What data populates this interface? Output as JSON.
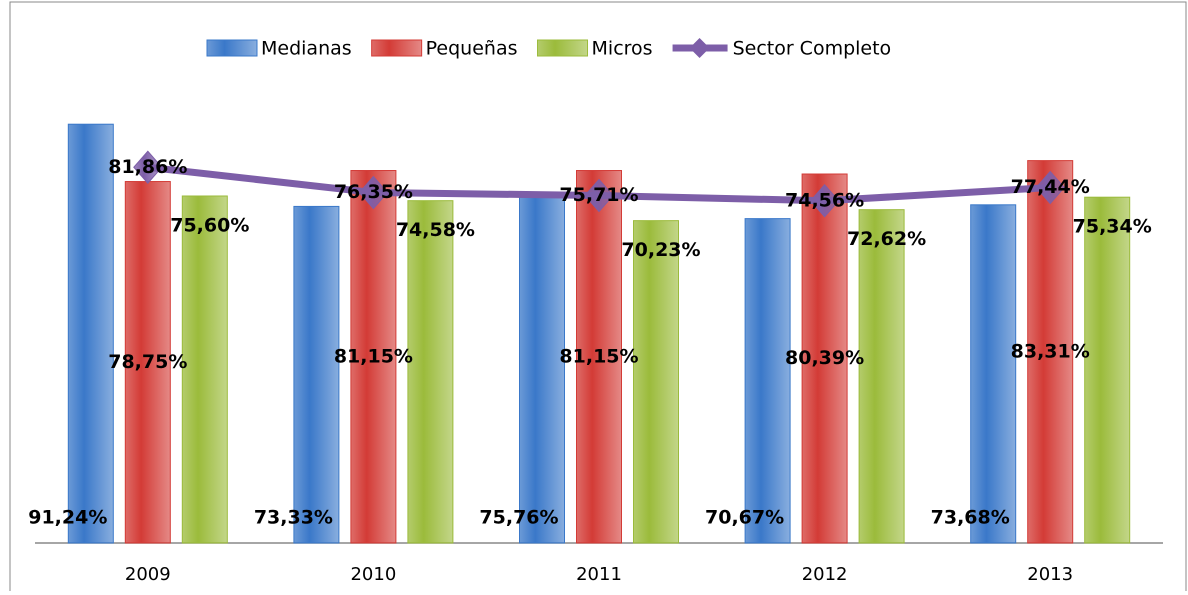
{
  "chart_data": {
    "type": "bar",
    "categories": [
      "2009",
      "2010",
      "2011",
      "2012",
      "2013"
    ],
    "series": [
      {
        "name": "Medianas",
        "color": "#3a78c9",
        "values": [
          91.24,
          73.33,
          75.76,
          70.67,
          73.68
        ],
        "value_labels": [
          "91,24%",
          "73,33%",
          "75,76%",
          "70,67%",
          "73,68%"
        ]
      },
      {
        "name": "Pequeñas",
        "color": "#d33b36",
        "values": [
          78.75,
          81.15,
          81.15,
          80.39,
          83.31
        ],
        "value_labels": [
          "78,75%",
          "81,15%",
          "81,15%",
          "80,39%",
          "83,31%"
        ]
      },
      {
        "name": "Micros",
        "color": "#9bbb3b",
        "values": [
          75.6,
          74.58,
          70.23,
          72.62,
          75.34
        ],
        "value_labels": [
          "75,60%",
          "74,58%",
          "70,23%",
          "72,62%",
          "75,34%"
        ]
      },
      {
        "name": "Sector Completo",
        "color": "#7d5ea8",
        "type": "line",
        "values": [
          81.86,
          76.35,
          75.71,
          74.56,
          77.44
        ],
        "value_labels": [
          "81,86%",
          "76,35%",
          "75,71%",
          "74,56%",
          "77,44%"
        ]
      }
    ],
    "ylim": [
      0,
      100
    ],
    "legend": "top"
  }
}
